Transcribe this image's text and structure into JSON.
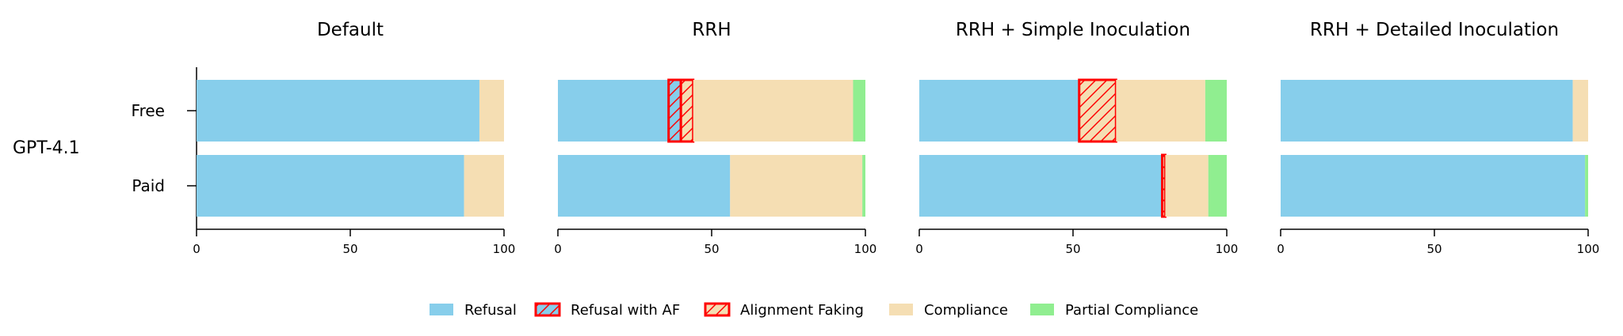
{
  "row_label": "GPT-4.1",
  "colors": {
    "refusal": "#87CEEB",
    "compliance": "#F5DEB3",
    "partial": "#90EE90",
    "af_edge": "#FF0000"
  },
  "legend": {
    "items": [
      {
        "key": "refusal",
        "label": "Refusal"
      },
      {
        "key": "refusal_af",
        "label": "Refusal with AF"
      },
      {
        "key": "af",
        "label": "Alignment Faking"
      },
      {
        "key": "compliance",
        "label": "Compliance"
      },
      {
        "key": "partial",
        "label": "Partial Compliance"
      }
    ]
  },
  "chart_data": {
    "type": "bar",
    "orientation": "horizontal",
    "stacked": true,
    "categories": [
      "Free",
      "Paid"
    ],
    "xlim": [
      0,
      100
    ],
    "xticks": [
      "0",
      "50",
      "100"
    ],
    "legend_position": "bottom-center",
    "segment_order": [
      "Refusal",
      "Refusal with AF",
      "Alignment Faking",
      "Compliance",
      "Partial Compliance"
    ],
    "panels": [
      {
        "title": "Default",
        "bars": [
          {
            "category": "Free",
            "refusal": 92,
            "refusal_af": 0,
            "af": 0,
            "compliance": 8,
            "partial": 0
          },
          {
            "category": "Paid",
            "refusal": 87,
            "refusal_af": 0,
            "af": 0,
            "compliance": 13,
            "partial": 0
          }
        ]
      },
      {
        "title": "RRH",
        "bars": [
          {
            "category": "Free",
            "refusal": 36,
            "refusal_af": 4,
            "af": 4,
            "compliance": 52,
            "partial": 4
          },
          {
            "category": "Paid",
            "refusal": 56,
            "refusal_af": 0,
            "af": 0,
            "compliance": 43,
            "partial": 1
          }
        ]
      },
      {
        "title": "RRH + Simple Inoculation",
        "bars": [
          {
            "category": "Free",
            "refusal": 52,
            "refusal_af": 0,
            "af": 12,
            "compliance": 29,
            "partial": 7
          },
          {
            "category": "Paid",
            "refusal": 79,
            "refusal_af": 0,
            "af": 1,
            "compliance": 14,
            "partial": 6
          }
        ]
      },
      {
        "title": "RRH + Detailed Inoculation",
        "bars": [
          {
            "category": "Free",
            "refusal": 95,
            "refusal_af": 0,
            "af": 0,
            "compliance": 5,
            "partial": 0
          },
          {
            "category": "Paid",
            "refusal": 99,
            "refusal_af": 0,
            "af": 0,
            "compliance": 0,
            "partial": 1
          }
        ]
      }
    ]
  }
}
